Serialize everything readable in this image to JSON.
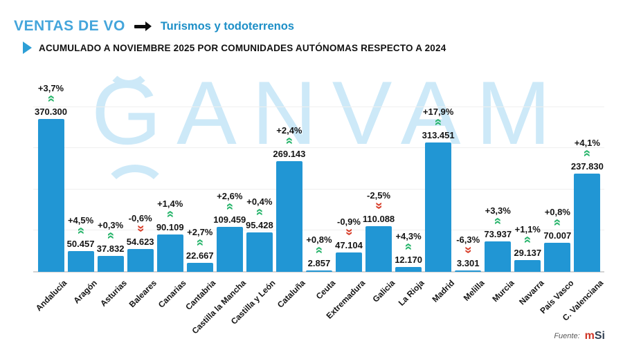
{
  "header": {
    "title": "VENTAS DE VO",
    "tag": "Turismos y todoterrenos",
    "subtitle": "ACUMULADO A NOVIEMBRE 2025 POR COMUNIDADES AUTÓNOMAS RESPECTO A 2024"
  },
  "watermark": {
    "text": "GANVAM"
  },
  "source": {
    "label": "Fuente:",
    "logo_m": "m",
    "logo_rest": "Si"
  },
  "colors": {
    "title_blue": "#44a5db",
    "tag_blue": "#1d8fc7",
    "bar_blue": "#2196d4",
    "up_green": "#29b56c",
    "down_red": "#d8402c",
    "watermark_blue": "#cde9f8"
  },
  "chart_data": {
    "type": "bar",
    "title": "VENTAS DE VO — Turismos y todoterrenos",
    "subtitle": "ACUMULADO A NOVIEMBRE 2025 POR COMUNIDADES AUTÓNOMAS RESPECTO A 2024",
    "categories": [
      "Andalucía",
      "Aragón",
      "Asturias",
      "Baleares",
      "Canarias",
      "Cantabria",
      "Castilla la Mancha",
      "Castilla y León",
      "Cataluña",
      "Ceuta",
      "Extremadura",
      "Galicia",
      "La Rioja",
      "Madrid",
      "Melilla",
      "Murcia",
      "Navarra",
      "País Vasco",
      "C. Valenciana"
    ],
    "values": [
      370300,
      50457,
      37832,
      54623,
      90109,
      22667,
      109459,
      95428,
      269143,
      2857,
      47104,
      110088,
      12170,
      313451,
      3301,
      73937,
      29137,
      70007,
      237830
    ],
    "value_labels": [
      "370.300",
      "50.457",
      "37.832",
      "54.623",
      "90.109",
      "22.667",
      "109.459",
      "95.428",
      "269.143",
      "2.857",
      "47.104",
      "110.088",
      "12.170",
      "313.451",
      "3.301",
      "73.937",
      "29.137",
      "70.007",
      "237.830"
    ],
    "pct_labels": [
      "+3,7%",
      "+4,5%",
      "+0,3%",
      "-0,6%",
      "+1,4%",
      "+2,7%",
      "+2,6%",
      "+0,4%",
      "+2,4%",
      "+0,8%",
      "-0,9%",
      "-2,5%",
      "+4,3%",
      "+17,9%",
      "-6,3%",
      "+3,3%",
      "+1,1%",
      "+0,8%",
      "+4,1%"
    ],
    "directions": [
      "up",
      "up",
      "up",
      "down",
      "up",
      "up",
      "up",
      "up",
      "up",
      "up",
      "down",
      "down",
      "up",
      "up",
      "down",
      "up",
      "up",
      "up",
      "up"
    ],
    "ylim": [
      0,
      408000
    ],
    "gridline_values": [
      100000,
      200000,
      300000,
      400000
    ],
    "grid": "on",
    "legend": "none",
    "xlabel": "",
    "ylabel": ""
  }
}
